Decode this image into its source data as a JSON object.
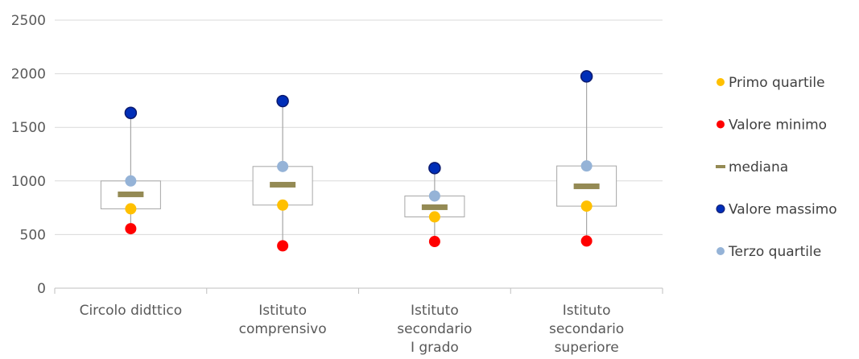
{
  "chart_data": {
    "type": "box",
    "title": "",
    "xlabel": "",
    "ylabel": "",
    "ylim": [
      0,
      2500
    ],
    "yticks": [
      0,
      500,
      1000,
      1500,
      2000,
      2500
    ],
    "grid": true,
    "legend_position": "right",
    "categories": [
      [
        "Circolo didttico"
      ],
      [
        "Istituto",
        "comprensivo"
      ],
      [
        "Istituto",
        "secondario",
        "I grado"
      ],
      [
        "Istituto",
        "secondario",
        "superiore"
      ]
    ],
    "series": [
      {
        "name": "Primo quartile",
        "marker": "dot",
        "color": "#FFC000",
        "values": [
          740,
          775,
          665,
          765
        ]
      },
      {
        "name": "Valore minimo",
        "marker": "dot",
        "color": "#FF0000",
        "values": [
          555,
          395,
          435,
          440
        ]
      },
      {
        "name": "mediana",
        "marker": "dash",
        "color": "#948A54",
        "values": [
          875,
          965,
          755,
          950
        ]
      },
      {
        "name": "Valore massimo",
        "marker": "dot-outlined",
        "color": "#002EB8",
        "values": [
          1635,
          1745,
          1120,
          1975
        ]
      },
      {
        "name": "Terzo quartile",
        "marker": "dot",
        "color": "#95B3D7",
        "values": [
          1000,
          1135,
          860,
          1140
        ]
      }
    ]
  }
}
